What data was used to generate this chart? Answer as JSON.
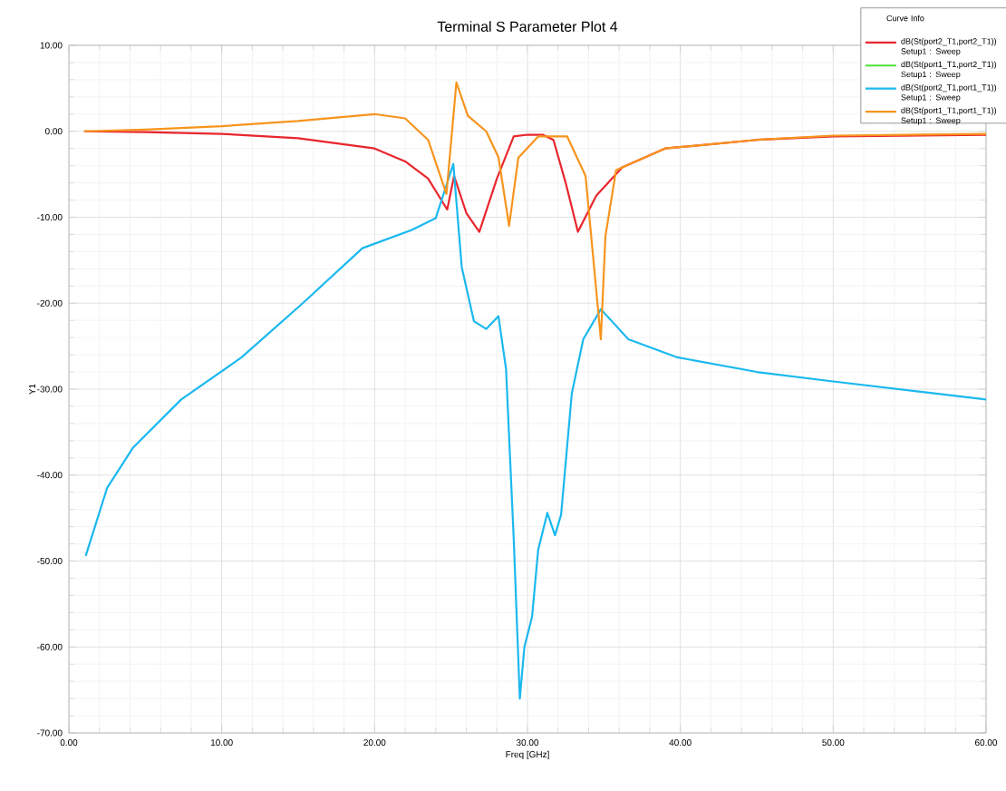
{
  "chart_data": {
    "type": "line",
    "title": "Terminal S Parameter Plot 4",
    "xlabel": "Freq [GHz]",
    "ylabel": "Y1",
    "legend_title": "Curve Info",
    "xlim": [
      0,
      60
    ],
    "ylim": [
      -70,
      10
    ],
    "xticks": [
      {
        "value": 0,
        "label": "0.00"
      },
      {
        "value": 10,
        "label": "10.00"
      },
      {
        "value": 20,
        "label": "20.00"
      },
      {
        "value": 30,
        "label": "30.00"
      },
      {
        "value": 40,
        "label": "40.00"
      },
      {
        "value": 50,
        "label": "50.00"
      },
      {
        "value": 60,
        "label": "60.00"
      }
    ],
    "yticks": [
      {
        "value": -70,
        "label": "-70.00"
      },
      {
        "value": -60,
        "label": "-60.00"
      },
      {
        "value": -50,
        "label": "-50.00"
      },
      {
        "value": -40,
        "label": "-40.00"
      },
      {
        "value": -30,
        "label": "-30.00"
      },
      {
        "value": -20,
        "label": "-20.00"
      },
      {
        "value": -10,
        "label": "-10.00"
      },
      {
        "value": 0,
        "label": "0.00"
      },
      {
        "value": 10,
        "label": "10.00"
      }
    ],
    "grid": true,
    "legend": "top right",
    "line_style": "solid",
    "marker": "none",
    "series": [
      {
        "name": "dB(St(port2_T1,port2_T1)) Setup1 : Sweep",
        "color": "#e8262d",
        "x": [
          1,
          5,
          10,
          15,
          20,
          22,
          23.5,
          24.75,
          25.2,
          26,
          26.85,
          28,
          29.1,
          30,
          31,
          31.7,
          32.5,
          33.3,
          34.5,
          36.2,
          39,
          45,
          50,
          60
        ],
        "values": [
          0,
          -0.1,
          -0.3,
          -0.8,
          -2,
          -3.5,
          -5.5,
          -9.1,
          -5.2,
          -9.5,
          -11.7,
          -5.5,
          -0.6,
          -0.4,
          -0.4,
          -1,
          -6,
          -11.7,
          -7.5,
          -4.2,
          -2,
          -1,
          -0.6,
          -0.4
        ]
      },
      {
        "name": "dB(St(port1_T1,port2_T1)) Setup1 : Sweep",
        "color": "#4fe03a",
        "values": [
          null
        ]
      },
      {
        "name": "dB(St(port2_T1,port1_T1)) Setup1 : Sweep",
        "color": "#1ab8ef",
        "x": [
          1.1,
          2.5,
          4.2,
          7.35,
          11.3,
          15.3,
          19.2,
          22.4,
          24,
          25.15,
          25.7,
          26.5,
          27.3,
          28.1,
          28.6,
          29.1,
          29.5,
          29.8,
          30.3,
          30.7,
          31.3,
          31.8,
          32.2,
          32.9,
          33.65,
          34.8,
          36.6,
          39.8,
          45,
          50,
          60
        ],
        "values": [
          -49.4,
          -41.5,
          -36.8,
          -31.2,
          -26.3,
          -20,
          -13.6,
          -11.5,
          -10.1,
          -3.8,
          -15.8,
          -22.1,
          -23,
          -21.5,
          -27.7,
          -47.4,
          -66,
          -60,
          -56.5,
          -48.7,
          -44.4,
          -47,
          -44.6,
          -30.5,
          -24.2,
          -20.7,
          -24.2,
          -26.3,
          -28,
          -29.1,
          -31.2
        ]
      },
      {
        "name": "dB(St(port1_T1,port1_T1)) Setup1 : Sweep",
        "color": "#f7941d",
        "x": [
          1,
          5,
          10,
          15,
          20,
          22,
          23.5,
          24.7,
          25.35,
          26.1,
          27.3,
          28.1,
          28.8,
          29.4,
          30.7,
          32.6,
          33.8,
          34.8,
          35.1,
          35.8,
          39,
          45,
          50,
          60
        ],
        "values": [
          0,
          0.2,
          0.6,
          1.2,
          2,
          1.5,
          -1,
          -7.3,
          5.7,
          1.8,
          0,
          -3,
          -11,
          -3.1,
          -0.6,
          -0.6,
          -5.2,
          -24.2,
          -12.2,
          -4.5,
          -2,
          -1,
          -0.5,
          -0.3
        ]
      }
    ]
  }
}
